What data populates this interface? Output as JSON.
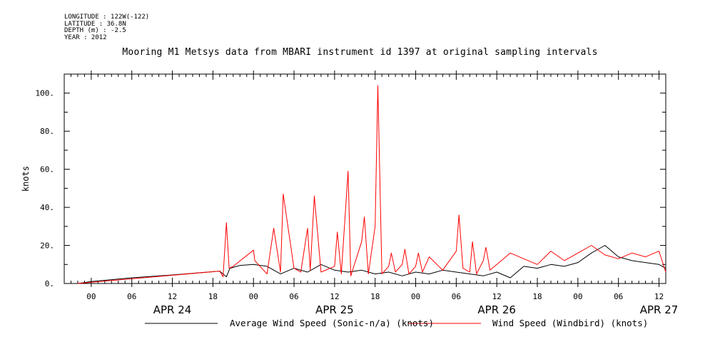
{
  "header": {
    "meta_lines": [
      "LONGITUDE : 122W(-122)",
      "LATITUDE : 36.8N",
      "DEPTH (m) : -2.5",
      "YEAR : 2012"
    ],
    "title": "Mooring M1 Metsys data from MBARI instrument id 1397 at original sampling intervals"
  },
  "chart_data": {
    "type": "line",
    "title": "Mooring M1 Metsys data from MBARI instrument id 1397 at original sampling intervals",
    "xlabel": "",
    "ylabel": "knots",
    "ylim": [
      0,
      110
    ],
    "xlim_hours": [
      -4,
      85
    ],
    "y_ticks": [
      "0.",
      "20.",
      "40.",
      "60.",
      "80.",
      "100."
    ],
    "x_tick_labels": [
      "00",
      "06",
      "12",
      "18",
      "00",
      "06",
      "12",
      "18",
      "00",
      "06",
      "12",
      "18",
      "00",
      "06",
      "12"
    ],
    "date_labels": [
      "APR 24",
      "APR 25",
      "APR 26",
      "APR 27"
    ],
    "grid": false,
    "legend_position": "bottom",
    "colors": {
      "average": "#000000",
      "windbird": "#ff0000"
    },
    "series": [
      {
        "name": "Average Wind Speed (Sonic-n/a) (knots)",
        "color": "#000000",
        "x": [
          -2,
          0,
          6,
          12,
          19,
          20,
          20.5,
          22,
          24,
          26,
          28,
          30,
          32,
          34,
          36,
          38,
          40,
          42,
          44,
          46,
          48,
          50,
          52,
          54,
          56,
          58,
          60,
          62,
          64,
          66,
          68,
          70,
          72,
          74,
          76,
          78,
          80,
          82,
          84,
          85
        ],
        "y": [
          0,
          1,
          3,
          4.5,
          6.5,
          3.5,
          8,
          9.5,
          10,
          9,
          5,
          8,
          6,
          10,
          7,
          6,
          7,
          5,
          6,
          4,
          6,
          5,
          7,
          6,
          5,
          4,
          6,
          3,
          9,
          8,
          10,
          9,
          11,
          16,
          20,
          14,
          12,
          11,
          10,
          8
        ]
      },
      {
        "name": "Wind Speed (Windbird) (knots)",
        "color": "#ff0000",
        "x": [
          -2,
          19,
          19.5,
          20,
          20.4,
          21,
          24,
          24.2,
          26,
          27,
          28,
          28.4,
          30,
          31,
          32,
          32.4,
          33,
          34,
          36,
          36.4,
          37,
          38,
          38.4,
          40,
          40.4,
          41,
          42,
          42.4,
          43,
          44,
          44.4,
          45,
          46,
          46.4,
          47,
          48,
          48.4,
          49,
          50,
          52,
          54,
          54.4,
          55,
          56,
          56.4,
          57,
          58,
          58.4,
          59,
          60,
          62,
          64,
          66,
          68,
          70,
          72,
          74,
          76,
          78,
          80,
          82,
          84,
          85
        ],
        "y": [
          0,
          6.5,
          3.5,
          32,
          8,
          9,
          17.5,
          12,
          5,
          29,
          6,
          47,
          8,
          6,
          29,
          7,
          46,
          6,
          9,
          27,
          5,
          59,
          4,
          22,
          35,
          5,
          30,
          104,
          5,
          9,
          16,
          6,
          10,
          18,
          5,
          9,
          16,
          6,
          14,
          7,
          17,
          36,
          8,
          6,
          22,
          5,
          12,
          19,
          7,
          10,
          16,
          13,
          10,
          17,
          12,
          16,
          20,
          15,
          13,
          16,
          14,
          17,
          6
        ]
      }
    ]
  },
  "legend": {
    "avg_label": "Average Wind Speed (Sonic-n/a) (knots)",
    "windbird_label": "Wind Speed (Windbird) (knots)"
  }
}
